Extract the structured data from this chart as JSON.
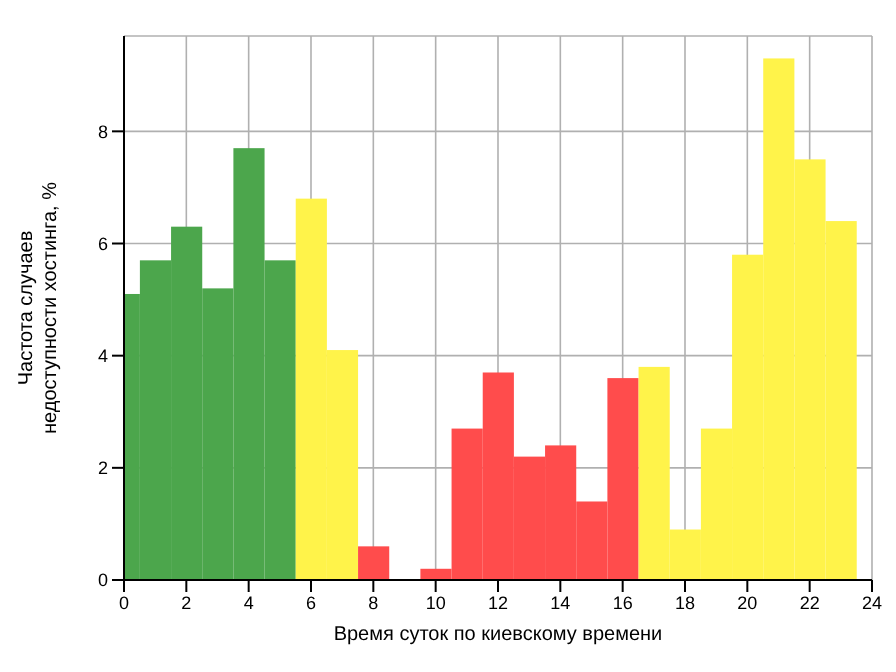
{
  "chart_data": {
    "type": "histogram",
    "xlabel": "Время суток по киевскому времени",
    "ylabel": "Частота случаев\nнедоступности хостинга, %",
    "bins": [
      0,
      0.5,
      1.5,
      2.5,
      3.5,
      4.5,
      5.5,
      6.5,
      7.5,
      8.5,
      9.5,
      10.5,
      11.5,
      12.5,
      13.5,
      14.5,
      15.5,
      16.5,
      17.5,
      18.5,
      19.5,
      20.5,
      21.5,
      22.5,
      23.5
    ],
    "values": [
      5.1,
      5.7,
      6.3,
      5.2,
      7.7,
      5.7,
      6.8,
      4.1,
      0.6,
      0,
      0.2,
      2.7,
      3.7,
      2.2,
      2.4,
      1.4,
      3.6,
      3.8,
      0.9,
      2.7,
      5.8,
      9.3,
      7.5,
      6.4
    ],
    "colors": [
      "#4ca64c",
      "#4ca64c",
      "#4ca64c",
      "#4ca64c",
      "#4ca64c",
      "#4ca64c",
      "#fff34a",
      "#fff34a",
      "#ff4c4c",
      "#ff4c4c",
      "#ff4c4c",
      "#ff4c4c",
      "#ff4c4c",
      "#ff4c4c",
      "#ff4c4c",
      "#ff4c4c",
      "#ff4c4c",
      "#fff34a",
      "#fff34a",
      "#fff34a",
      "#fff34a",
      "#fff34a",
      "#fff34a",
      "#fff34a"
    ],
    "xlim": [
      0,
      24
    ],
    "xticks": [
      0,
      2,
      4,
      6,
      8,
      10,
      12,
      14,
      16,
      18,
      20,
      22,
      24
    ],
    "ylim": [
      0,
      9.7
    ],
    "yticks": [
      0,
      2,
      4,
      6,
      8
    ],
    "grid": true
  }
}
